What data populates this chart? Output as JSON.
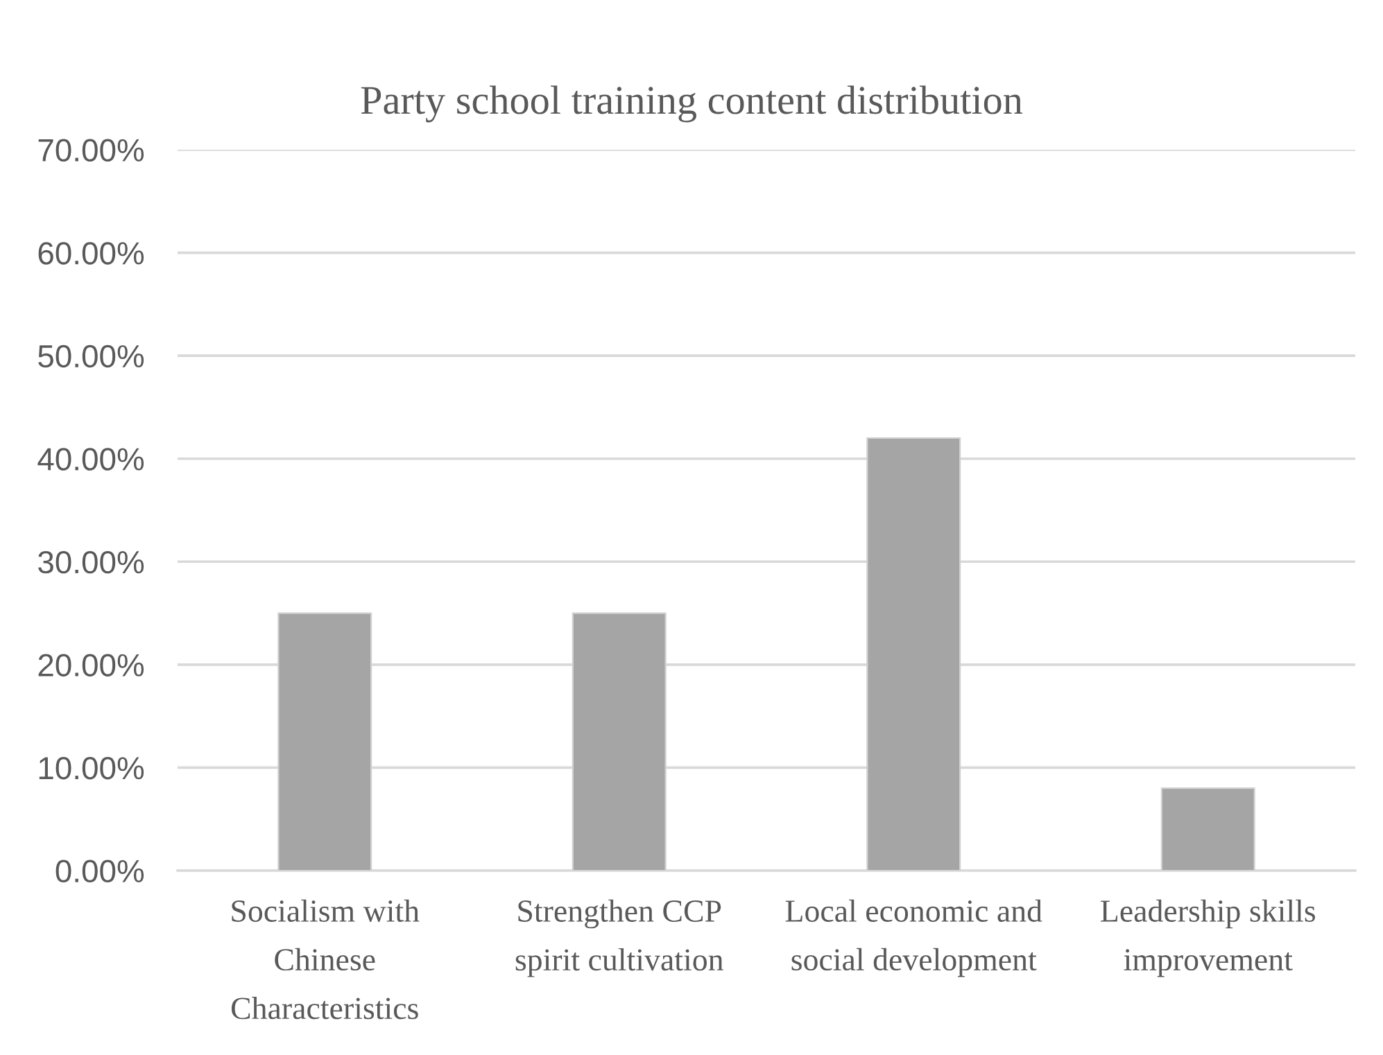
{
  "chart_data": {
    "type": "bar",
    "title": "Party school training content distribution",
    "categories": [
      "Socialism with\nChinese\nCharacteristics",
      "Strengthen CCP\nspirit cultivation",
      "Local economic and\nsocial development",
      "Leadership skills\nimprovement"
    ],
    "values": [
      25,
      25,
      42,
      8
    ],
    "color": "#a5a5a5",
    "ylim": [
      0,
      70
    ],
    "yticks": [
      {
        "value": 0,
        "label": "0.00%"
      },
      {
        "value": 10,
        "label": "10.00%"
      },
      {
        "value": 20,
        "label": "20.00%"
      },
      {
        "value": 30,
        "label": "30.00%"
      },
      {
        "value": 40,
        "label": "40.00%"
      },
      {
        "value": 50,
        "label": "50.00%"
      },
      {
        "value": 60,
        "label": "60.00%"
      },
      {
        "value": 70,
        "label": "70.00%"
      }
    ],
    "grid": "y"
  }
}
